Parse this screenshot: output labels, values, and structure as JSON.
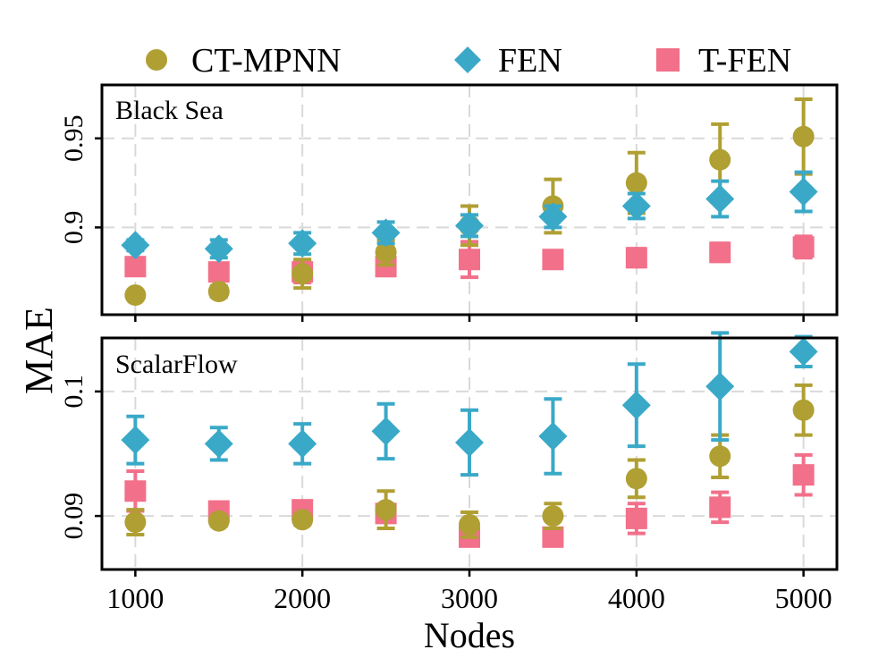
{
  "chart_data": {
    "type": "scatter",
    "legend": {
      "placement": "top",
      "entries": [
        {
          "label": "CT-MPNN",
          "marker": "circle"
        },
        {
          "label": "FEN",
          "marker": "diamond"
        },
        {
          "label": "T-FEN",
          "marker": "square"
        }
      ]
    },
    "ylabel": "MAE",
    "xlabel": "Nodes",
    "x_ticks": [
      "1000",
      "2000",
      "3000",
      "4000",
      "5000"
    ],
    "colors": {
      "CT-MPNN": "#b09f33",
      "FEN": "#3aa9c8",
      "T-FEN": "#f2708a"
    },
    "grid": true,
    "panels": [
      {
        "title": "Black Sea",
        "xlim": [
          800,
          5200
        ],
        "ylim": [
          0.851,
          0.98
        ],
        "y_ticks": [
          "0.9",
          "0.95"
        ],
        "y_tick_values": [
          0.9,
          0.95
        ],
        "x": [
          1000,
          1500,
          2000,
          2500,
          3000,
          3500,
          4000,
          4500,
          5000
        ],
        "series": [
          {
            "name": "CT-MPNN",
            "y": [
              0.862,
              0.864,
              0.874,
              0.886,
              0.901,
              0.912,
              0.925,
              0.938,
              0.951
            ],
            "err": [
              0.002,
              0.003,
              0.008,
              0.007,
              0.011,
              0.015,
              0.017,
              0.02,
              0.021
            ]
          },
          {
            "name": "FEN",
            "y": [
              0.89,
              0.888,
              0.891,
              0.897,
              0.901,
              0.906,
              0.912,
              0.916,
              0.92
            ],
            "err": [
              0.003,
              0.005,
              0.006,
              0.006,
              0.006,
              0.006,
              0.007,
              0.01,
              0.011
            ]
          },
          {
            "name": "T-FEN",
            "y": [
              0.878,
              0.875,
              0.875,
              0.878,
              0.882,
              0.882,
              0.883,
              0.886,
              0.889
            ],
            "err": [
              0.004,
              0.004,
              0.006,
              0.005,
              0.01,
              0.004,
              0.005,
              0.005,
              0.006
            ]
          }
        ]
      },
      {
        "title": "ScalarFlow",
        "xlim": [
          800,
          5200
        ],
        "ylim": [
          0.0857,
          0.1043
        ],
        "y_ticks": [
          "0.09",
          "0.1"
        ],
        "y_tick_values": [
          0.09,
          0.1
        ],
        "x": [
          1000,
          1500,
          2000,
          2500,
          3000,
          3500,
          4000,
          4500,
          5000
        ],
        "series": [
          {
            "name": "CT-MPNN",
            "y": [
              0.0895,
              0.0896,
              0.0897,
              0.0905,
              0.0893,
              0.09,
              0.093,
              0.0948,
              0.0985
            ],
            "err": [
              0.001,
              0.0004,
              0.0004,
              0.0015,
              0.001,
              0.001,
              0.0015,
              0.0017,
              0.002
            ]
          },
          {
            "name": "FEN",
            "y": [
              0.0961,
              0.0958,
              0.0958,
              0.0968,
              0.0959,
              0.0964,
              0.0989,
              0.1004,
              0.1032
            ],
            "err": [
              0.0019,
              0.0013,
              0.0016,
              0.0022,
              0.0026,
              0.003,
              0.0033,
              0.0043,
              0.0012
            ]
          },
          {
            "name": "T-FEN",
            "y": [
              0.092,
              0.0904,
              0.0905,
              0.0902,
              0.0883,
              0.0883,
              0.0898,
              0.0907,
              0.0933
            ],
            "err": [
              0.0016,
              0.0004,
              0.0004,
              0.0007,
              0.0007,
              0.0007,
              0.0012,
              0.0012,
              0.0016
            ]
          }
        ]
      }
    ]
  }
}
